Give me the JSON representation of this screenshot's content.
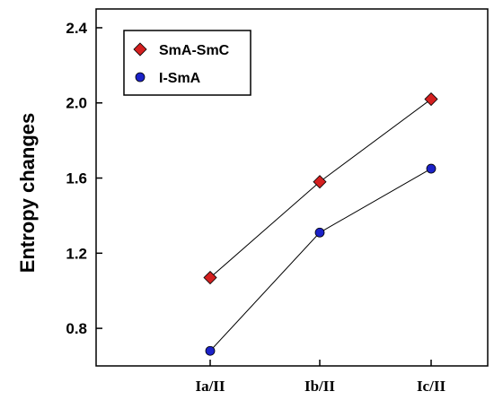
{
  "chart_data": {
    "type": "line",
    "categories": [
      "Ia/II",
      "Ib/II",
      "Ic/II"
    ],
    "series": [
      {
        "name": "SmA-SmC",
        "values": [
          1.07,
          1.58,
          2.02
        ],
        "marker": "diamond",
        "color": "#d42020"
      },
      {
        "name": "I-SmA",
        "values": [
          0.68,
          1.31,
          1.65
        ],
        "marker": "circle",
        "color": "#1c22c8"
      }
    ],
    "title": "",
    "xlabel": "",
    "ylabel": "Entropy changes",
    "ylim": [
      0.6,
      2.5
    ],
    "yticks": [
      "0.8",
      "1.2",
      "1.6",
      "2.0",
      "2.4"
    ],
    "grid": false,
    "legend_position": "top-left"
  }
}
